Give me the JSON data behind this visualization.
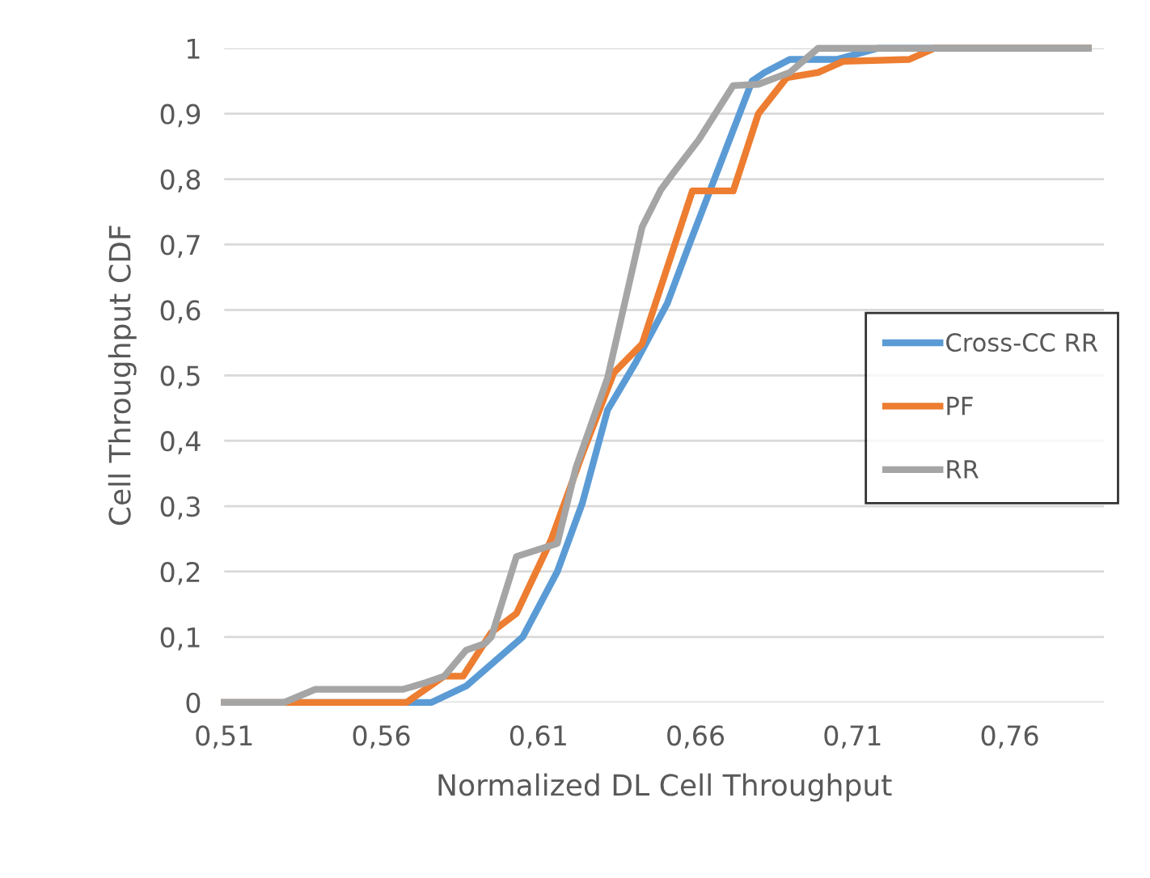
{
  "chart_data": {
    "type": "line",
    "xlabel": "Normalized DL Cell Throughput",
    "ylabel": "Cell Throughput CDF",
    "xlim": [
      0.51,
      0.79
    ],
    "ylim": [
      0,
      1
    ],
    "xticks": [
      {
        "value": 0.51,
        "label": "0,51"
      },
      {
        "value": 0.56,
        "label": "0,56"
      },
      {
        "value": 0.61,
        "label": "0,61"
      },
      {
        "value": 0.66,
        "label": "0,66"
      },
      {
        "value": 0.71,
        "label": "0,71"
      },
      {
        "value": 0.76,
        "label": "0,76"
      }
    ],
    "yticks": [
      0,
      {
        "value": 0.1,
        "label": "0,1"
      },
      {
        "value": 0.2,
        "label": "0,2"
      },
      {
        "value": 0.3,
        "label": "0,3"
      },
      {
        "value": 0.4,
        "label": "0,4"
      },
      {
        "value": 0.5,
        "label": "0,5"
      },
      {
        "value": 0.6,
        "label": "0,6"
      },
      {
        "value": 0.7,
        "label": "0,7"
      },
      {
        "value": 0.8,
        "label": "0,8"
      },
      {
        "value": 0.9,
        "label": "0,9"
      },
      1
    ],
    "grid": "y",
    "legend": "right",
    "marker": "none",
    "line_style": "solid",
    "series": [
      {
        "name": "Cross-CC RR",
        "color": "#5b9bd5",
        "x": [
          0.51,
          0.576,
          0.587,
          0.605,
          0.616,
          0.624,
          0.632,
          0.641,
          0.651,
          0.658,
          0.678,
          0.682,
          0.69,
          0.705,
          0.718,
          0.785
        ],
        "values": [
          0,
          0,
          0.025,
          0.1,
          0.2,
          0.305,
          0.447,
          0.52,
          0.61,
          0.7,
          0.95,
          0.963,
          0.983,
          0.983,
          1,
          1
        ]
      },
      {
        "name": "PF",
        "color": "#ed7d31",
        "x": [
          0.51,
          0.568,
          0.58,
          0.586,
          0.595,
          0.603,
          0.614,
          0.624,
          0.634,
          0.643,
          0.659,
          0.672,
          0.68,
          0.689,
          0.699,
          0.707,
          0.728,
          0.736,
          0.785
        ],
        "values": [
          0,
          0,
          0.04,
          0.04,
          0.107,
          0.136,
          0.248,
          0.38,
          0.504,
          0.548,
          0.782,
          0.782,
          0.9,
          0.955,
          0.963,
          0.98,
          0.983,
          1,
          1
        ]
      },
      {
        "name": "RR",
        "color": "#a5a5a5",
        "x": [
          0.51,
          0.529,
          0.539,
          0.567,
          0.574,
          0.58,
          0.587,
          0.593,
          0.595,
          0.603,
          0.616,
          0.622,
          0.632,
          0.643,
          0.649,
          0.653,
          0.661,
          0.672,
          0.68,
          0.69,
          0.699,
          0.785
        ],
        "values": [
          0,
          0,
          0.02,
          0.02,
          0.03,
          0.04,
          0.08,
          0.09,
          0.1,
          0.223,
          0.243,
          0.36,
          0.496,
          0.727,
          0.784,
          0.81,
          0.86,
          0.943,
          0.945,
          0.963,
          1,
          1
        ]
      }
    ]
  }
}
